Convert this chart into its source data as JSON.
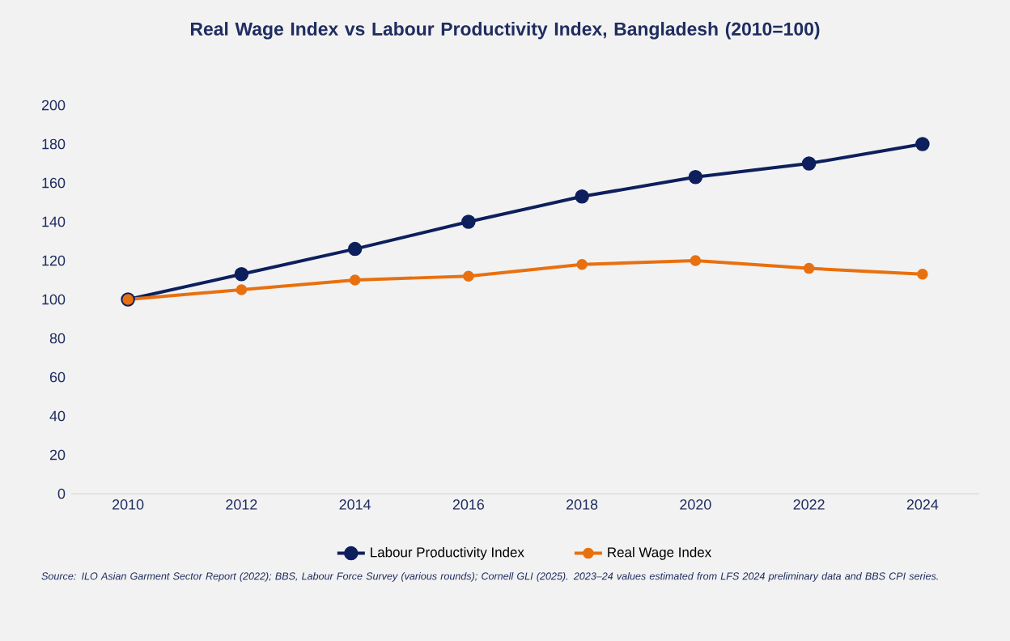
{
  "chart_data": {
    "type": "line",
    "title": "Real Wage Index vs Labour Productivity Index, Bangladesh (2010=100)",
    "categories": [
      "2010",
      "2012",
      "2014",
      "2016",
      "2018",
      "2020",
      "2022",
      "2024"
    ],
    "series": [
      {
        "name": "Labour Productivity Index",
        "color": "#0d1f5c",
        "values": [
          100,
          113,
          126,
          140,
          153,
          163,
          170,
          180
        ]
      },
      {
        "name": "Real Wage Index",
        "color": "#e8700f",
        "values": [
          100,
          105,
          110,
          112,
          118,
          120,
          116,
          113
        ]
      }
    ],
    "ylim": [
      0,
      200
    ],
    "yticks": [
      0,
      20,
      40,
      60,
      80,
      100,
      120,
      140,
      160,
      180,
      200
    ],
    "grid": false,
    "legend": "bottom",
    "marker": "circle",
    "line_style": "solid",
    "annotations": [
      "Source: ILO Asian Garment Sector Report (2022); BBS, Labour Force Survey (various rounds); Cornell GLI (2025). 2023–24 values estimated from LFS 2024 preliminary data and BBS CPI series."
    ]
  }
}
